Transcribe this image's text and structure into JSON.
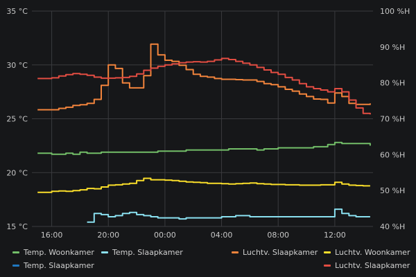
{
  "chart_data": {
    "type": "line",
    "x_unit": "hours",
    "x": [
      15,
      15.5,
      16,
      16.5,
      17,
      17.5,
      18,
      18.5,
      19,
      19.5,
      20,
      20.5,
      21,
      21.5,
      22,
      22.5,
      23,
      23.5,
      24,
      24.5,
      25,
      25.5,
      26,
      26.5,
      27,
      27.5,
      28,
      28.5,
      29,
      29.5,
      30,
      30.5,
      31,
      31.5,
      32,
      32.5,
      33,
      33.5,
      34,
      34.5,
      35,
      35.5,
      36,
      36.5,
      37,
      37.5,
      38,
      38.5
    ],
    "x_ticks": [
      "16:00",
      "20:00",
      "00:00",
      "04:00",
      "08:00",
      "12:00"
    ],
    "x_tick_values": [
      16,
      20,
      24,
      28,
      32,
      36
    ],
    "xlim": [
      14.6,
      38.7
    ],
    "y_left": {
      "ticks": [
        "15 °C",
        "20 °C",
        "25 °C",
        "30 °C",
        "35 °C"
      ],
      "tick_values": [
        15,
        20,
        25,
        30,
        35
      ],
      "ylim": [
        15,
        35
      ]
    },
    "y_right": {
      "ticks": [
        "40 %H",
        "50 %H",
        "60 %H",
        "70 %H",
        "80 %H",
        "90 %H",
        "100 %H"
      ],
      "tick_values": [
        40,
        50,
        60,
        70,
        80,
        90,
        100
      ],
      "ylim": [
        40,
        100
      ]
    },
    "grid": true,
    "legend_position": "bottom",
    "series": [
      {
        "name": "Temp. Woonkamer",
        "axis": "left",
        "color": "#73bf69",
        "values": [
          21.8,
          21.8,
          21.7,
          21.7,
          21.8,
          21.7,
          21.9,
          21.8,
          21.8,
          21.9,
          21.9,
          21.9,
          21.9,
          21.9,
          21.9,
          21.9,
          21.9,
          22.0,
          22.0,
          22.0,
          22.0,
          22.1,
          22.1,
          22.1,
          22.1,
          22.1,
          22.1,
          22.2,
          22.2,
          22.2,
          22.2,
          22.1,
          22.2,
          22.2,
          22.3,
          22.3,
          22.3,
          22.3,
          22.3,
          22.4,
          22.4,
          22.6,
          22.8,
          22.7,
          22.7,
          22.7,
          22.7,
          22.5
        ]
      },
      {
        "name": "Temp. Slaapkamer",
        "axis": "left",
        "color": "#1f78c1",
        "values": [
          null,
          null,
          null,
          null,
          null,
          null,
          null,
          null,
          null,
          null,
          null,
          null,
          null,
          null,
          null,
          null,
          null,
          null,
          null,
          null,
          null,
          null,
          null,
          null,
          null,
          null,
          null,
          null,
          null,
          null,
          null,
          null,
          null,
          null,
          null,
          null,
          null,
          null,
          null,
          null,
          null,
          null,
          null,
          null,
          null,
          null,
          null,
          null
        ]
      },
      {
        "name": "Temp. Slaapkamer",
        "axis": "left",
        "color": "#8ae0f0",
        "values": [
          null,
          null,
          null,
          null,
          null,
          null,
          null,
          15.4,
          16.2,
          16.1,
          15.9,
          16.0,
          16.2,
          16.3,
          16.1,
          16.0,
          15.9,
          15.8,
          15.8,
          15.8,
          15.7,
          15.8,
          15.8,
          15.8,
          15.8,
          15.8,
          15.9,
          15.9,
          16.0,
          16.0,
          15.9,
          15.9,
          15.9,
          15.9,
          15.9,
          15.9,
          15.9,
          15.9,
          15.9,
          15.9,
          15.9,
          15.9,
          16.6,
          16.2,
          16.0,
          15.9,
          15.9,
          15.9
        ]
      },
      {
        "name": "Luchtv. Slaapkamer",
        "axis": "right",
        "color": "#f2843c",
        "values": [
          72.5,
          72.5,
          72.5,
          72.9,
          73.2,
          73.7,
          73.9,
          74.3,
          75.4,
          79.3,
          85.0,
          84.0,
          80.0,
          78.6,
          78.6,
          82.0,
          90.8,
          87.8,
          86.3,
          86.0,
          84.9,
          83.7,
          82.4,
          81.8,
          81.6,
          81.2,
          81.0,
          81.0,
          80.9,
          80.8,
          80.8,
          80.4,
          79.8,
          79.5,
          78.9,
          78.2,
          77.7,
          76.9,
          76.2,
          75.5,
          75.4,
          74.4,
          77.2,
          76.2,
          74.3,
          74.0,
          74.0,
          74.3
        ]
      },
      {
        "name": "Luchtv. Woonkamer",
        "axis": "right",
        "color": "#fade2a",
        "values": [
          49.5,
          49.5,
          49.8,
          49.9,
          49.8,
          50.0,
          50.2,
          50.6,
          50.5,
          51.0,
          51.5,
          51.6,
          51.8,
          52.0,
          52.8,
          53.4,
          53.0,
          53.0,
          52.9,
          52.8,
          52.6,
          52.4,
          52.3,
          52.2,
          52.0,
          52.0,
          51.9,
          51.8,
          51.9,
          52.0,
          52.1,
          51.9,
          51.8,
          51.7,
          51.7,
          51.6,
          51.6,
          51.5,
          51.5,
          51.5,
          51.6,
          51.6,
          52.3,
          51.8,
          51.5,
          51.4,
          51.3,
          51.3
        ]
      },
      {
        "name": "Luchtv. Slaapkamer",
        "axis": "right",
        "color": "#e24d42",
        "values": [
          81.2,
          81.2,
          81.4,
          81.9,
          82.3,
          82.6,
          82.4,
          82.1,
          81.6,
          81.3,
          81.3,
          81.4,
          81.5,
          81.8,
          82.5,
          83.5,
          84.1,
          84.6,
          85.0,
          85.3,
          85.6,
          85.8,
          85.9,
          85.8,
          86.0,
          86.4,
          86.8,
          86.5,
          86.0,
          85.5,
          85.0,
          84.3,
          83.6,
          82.9,
          82.4,
          81.5,
          80.8,
          79.8,
          78.9,
          78.4,
          78.0,
          77.5,
          78.4,
          77.5,
          75.2,
          73.0,
          71.5,
          71.2
        ]
      }
    ]
  },
  "legend": [
    {
      "label": "Temp. Woonkamer",
      "color": "#73bf69"
    },
    {
      "label": "Temp. Slaapkamer",
      "color": "#8ae0f0"
    },
    {
      "label": "Luchtv. Slaapkamer",
      "color": "#f2843c"
    },
    {
      "label": "Luchtv. Woonkamer",
      "color": "#fade2a"
    },
    {
      "label": "Temp. Slaapkamer",
      "color": "#1f78c1"
    },
    {
      "label": "Luchtv. Slaapkamer",
      "color": "#e24d42"
    }
  ]
}
